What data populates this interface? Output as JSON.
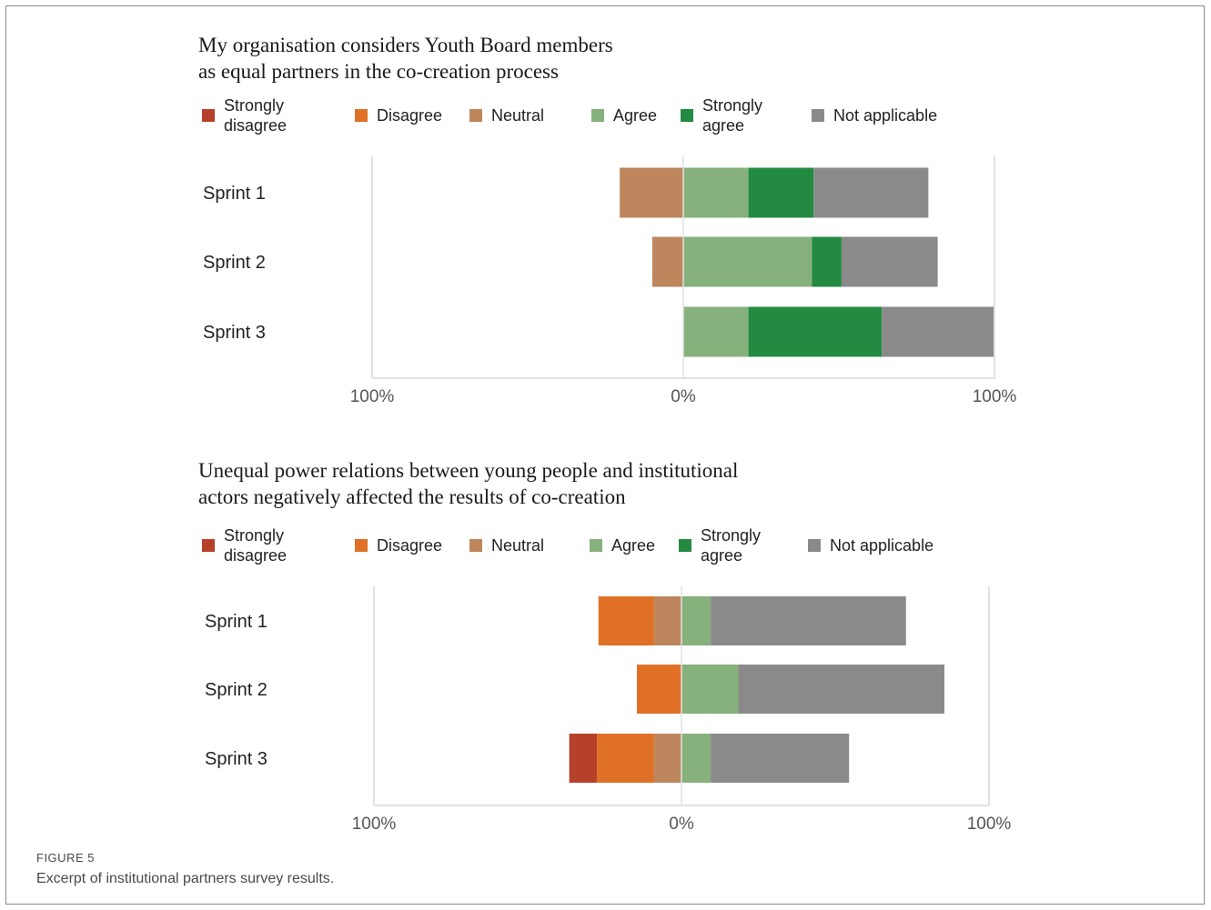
{
  "figure": {
    "label": "FIGURE 5",
    "caption": "Excerpt of institutional partners survey results."
  },
  "legend": [
    {
      "label": "Strongly\ndisagree",
      "color": "#b5412a"
    },
    {
      "label": "Disagree",
      "color": "#e07026"
    },
    {
      "label": "Neutral",
      "color": "#bd865c"
    },
    {
      "label": "Agree",
      "color": "#86b07c"
    },
    {
      "label": "Strongly\nagree",
      "color": "#238b41"
    },
    {
      "label": "Not applicable",
      "color": "#8a8a8a"
    }
  ],
  "chart_data": [
    {
      "type": "bar",
      "orientation": "horizontal-diverging-stacked",
      "title_lines": [
        "My organisation considers Youth Board members",
        "as equal partners in the co-creation process"
      ],
      "categories": [
        "Sprint 1",
        "Sprint 2",
        "Sprint 3"
      ],
      "unit": "%",
      "xlim": [
        -100,
        100
      ],
      "x_ticks": [
        "100%",
        "0%",
        "100%"
      ],
      "negative_series": [
        "Strongly disagree",
        "Disagree",
        "Neutral"
      ],
      "positive_series": [
        "Agree",
        "Strongly agree",
        "Not applicable"
      ],
      "series": [
        {
          "name": "Strongly disagree",
          "values": [
            0,
            0,
            0
          ]
        },
        {
          "name": "Disagree",
          "values": [
            0,
            0,
            0
          ]
        },
        {
          "name": "Neutral",
          "values": [
            20.5,
            10,
            0
          ]
        },
        {
          "name": "Agree",
          "values": [
            21,
            41.5,
            21
          ]
        },
        {
          "name": "Strongly agree",
          "values": [
            21,
            9.5,
            43
          ]
        },
        {
          "name": "Not applicable",
          "values": [
            37,
            31,
            36
          ]
        }
      ]
    },
    {
      "type": "bar",
      "orientation": "horizontal-diverging-stacked",
      "title_lines": [
        "Unequal power relations between young people and institutional",
        "actors negatively affected the results of co-creation"
      ],
      "categories": [
        "Sprint 1",
        "Sprint 2",
        "Sprint 3"
      ],
      "unit": "%",
      "xlim": [
        -100,
        100
      ],
      "x_ticks": [
        "100%",
        "0%",
        "100%"
      ],
      "negative_series": [
        "Strongly disagree",
        "Disagree",
        "Neutral"
      ],
      "positive_series": [
        "Agree",
        "Strongly agree",
        "Not applicable"
      ],
      "series": [
        {
          "name": "Strongly disagree",
          "values": [
            0,
            0,
            9
          ]
        },
        {
          "name": "Disagree",
          "values": [
            18,
            14.5,
            18.5
          ]
        },
        {
          "name": "Neutral",
          "values": [
            9,
            0,
            9
          ]
        },
        {
          "name": "Agree",
          "values": [
            9.5,
            18.5,
            9.5
          ]
        },
        {
          "name": "Strongly agree",
          "values": [
            0,
            0,
            0
          ]
        },
        {
          "name": "Not applicable",
          "values": [
            63.5,
            67,
            45
          ]
        }
      ]
    }
  ]
}
